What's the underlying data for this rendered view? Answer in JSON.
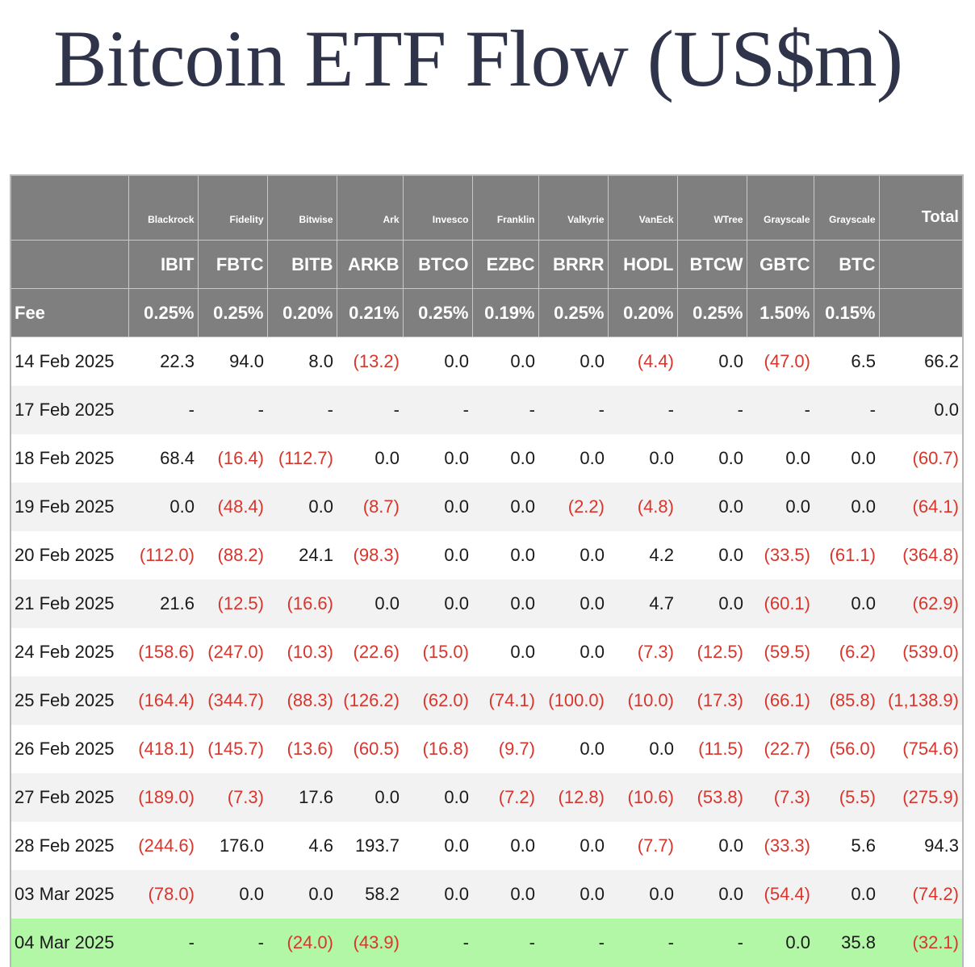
{
  "title": "Bitcoin ETF Flow (US$m)",
  "header": {
    "issuers": [
      "Blackrock",
      "Fidelity",
      "Bitwise",
      "Ark",
      "Invesco",
      "Franklin",
      "Valkyrie",
      "VanEck",
      "WTree",
      "Grayscale",
      "Grayscale"
    ],
    "total_label": "Total",
    "tickers": [
      "IBIT",
      "FBTC",
      "BITB",
      "ARKB",
      "BTCO",
      "EZBC",
      "BRRR",
      "HODL",
      "BTCW",
      "GBTC",
      "BTC"
    ],
    "fee_label": "Fee",
    "fees": [
      "0.25%",
      "0.25%",
      "0.20%",
      "0.21%",
      "0.25%",
      "0.19%",
      "0.25%",
      "0.20%",
      "0.25%",
      "1.50%",
      "0.15%"
    ]
  },
  "rows": [
    {
      "date": "14 Feb 2025",
      "values": [
        "22.3",
        "94.0",
        "8.0",
        "(13.2)",
        "0.0",
        "0.0",
        "0.0",
        "(4.4)",
        "0.0",
        "(47.0)",
        "6.5"
      ],
      "total": "66.2"
    },
    {
      "date": "17 Feb 2025",
      "values": [
        "-",
        "-",
        "-",
        "-",
        "-",
        "-",
        "-",
        "-",
        "-",
        "-",
        "-"
      ],
      "total": "0.0"
    },
    {
      "date": "18 Feb 2025",
      "values": [
        "68.4",
        "(16.4)",
        "(112.7)",
        "0.0",
        "0.0",
        "0.0",
        "0.0",
        "0.0",
        "0.0",
        "0.0",
        "0.0"
      ],
      "total": "(60.7)"
    },
    {
      "date": "19 Feb 2025",
      "values": [
        "0.0",
        "(48.4)",
        "0.0",
        "(8.7)",
        "0.0",
        "0.0",
        "(2.2)",
        "(4.8)",
        "0.0",
        "0.0",
        "0.0"
      ],
      "total": "(64.1)"
    },
    {
      "date": "20 Feb 2025",
      "values": [
        "(112.0)",
        "(88.2)",
        "24.1",
        "(98.3)",
        "0.0",
        "0.0",
        "0.0",
        "4.2",
        "0.0",
        "(33.5)",
        "(61.1)"
      ],
      "total": "(364.8)"
    },
    {
      "date": "21 Feb 2025",
      "values": [
        "21.6",
        "(12.5)",
        "(16.6)",
        "0.0",
        "0.0",
        "0.0",
        "0.0",
        "4.7",
        "0.0",
        "(60.1)",
        "0.0"
      ],
      "total": "(62.9)"
    },
    {
      "date": "24 Feb 2025",
      "values": [
        "(158.6)",
        "(247.0)",
        "(10.3)",
        "(22.6)",
        "(15.0)",
        "0.0",
        "0.0",
        "(7.3)",
        "(12.5)",
        "(59.5)",
        "(6.2)"
      ],
      "total": "(539.0)"
    },
    {
      "date": "25 Feb 2025",
      "values": [
        "(164.4)",
        "(344.7)",
        "(88.3)",
        "(126.2)",
        "(62.0)",
        "(74.1)",
        "(100.0)",
        "(10.0)",
        "(17.3)",
        "(66.1)",
        "(85.8)"
      ],
      "total": "(1,138.9)"
    },
    {
      "date": "26 Feb 2025",
      "values": [
        "(418.1)",
        "(145.7)",
        "(13.6)",
        "(60.5)",
        "(16.8)",
        "(9.7)",
        "0.0",
        "0.0",
        "(11.5)",
        "(22.7)",
        "(56.0)"
      ],
      "total": "(754.6)"
    },
    {
      "date": "27 Feb 2025",
      "values": [
        "(189.0)",
        "(7.3)",
        "17.6",
        "0.0",
        "0.0",
        "(7.2)",
        "(12.8)",
        "(10.6)",
        "(53.8)",
        "(7.3)",
        "(5.5)"
      ],
      "total": "(275.9)"
    },
    {
      "date": "28 Feb 2025",
      "values": [
        "(244.6)",
        "176.0",
        "4.6",
        "193.7",
        "0.0",
        "0.0",
        "0.0",
        "(7.7)",
        "0.0",
        "(33.3)",
        "5.6"
      ],
      "total": "94.3"
    },
    {
      "date": "03 Mar 2025",
      "values": [
        "(78.0)",
        "0.0",
        "0.0",
        "58.2",
        "0.0",
        "0.0",
        "0.0",
        "0.0",
        "0.0",
        "(54.4)",
        "0.0"
      ],
      "total": "(74.2)"
    },
    {
      "date": "04 Mar 2025",
      "values": [
        "-",
        "-",
        "(24.0)",
        "(43.9)",
        "-",
        "-",
        "-",
        "-",
        "-",
        "0.0",
        "35.8"
      ],
      "total": "(32.1)",
      "highlight": true
    }
  ],
  "colors": {
    "header_bg": "#7f7f7f",
    "negative": "#d9352c",
    "highlight_row": "#b2f7a6",
    "title": "#30344a"
  }
}
